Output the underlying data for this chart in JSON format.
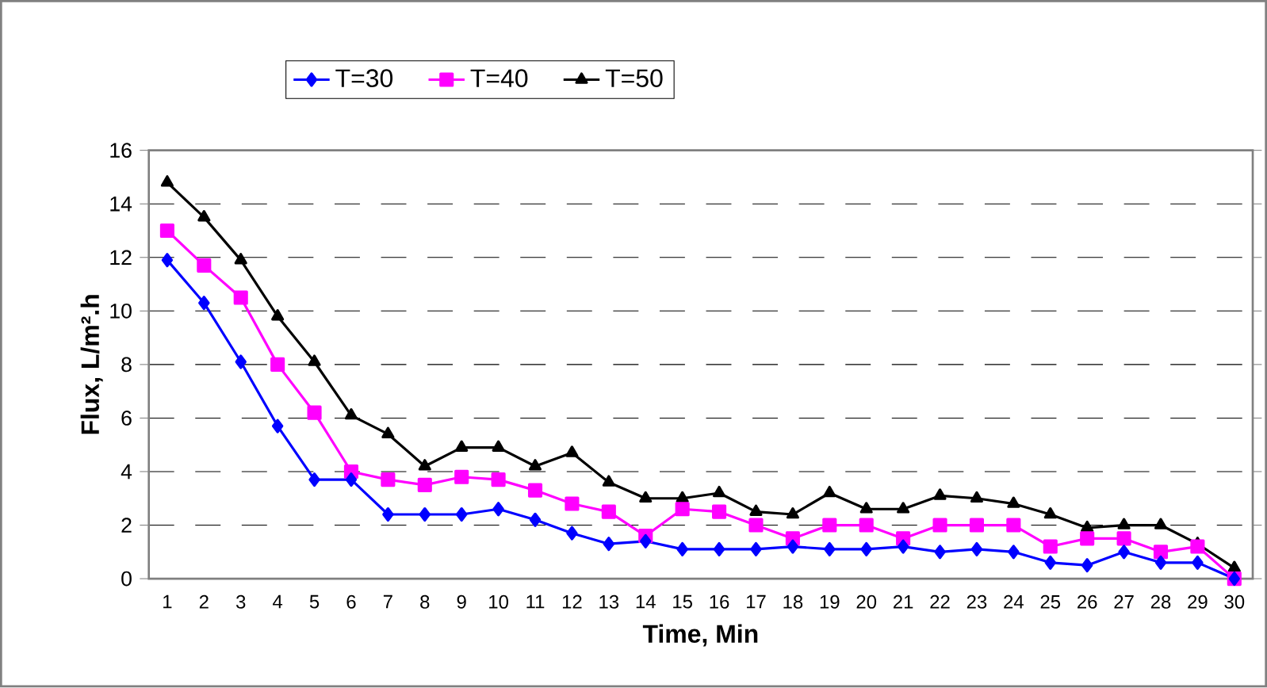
{
  "chart_data": {
    "type": "line",
    "xlabel": "Time, Min",
    "ylabel": "Flux, L/m².h",
    "categories": [
      "1",
      "2",
      "3",
      "4",
      "5",
      "6",
      "7",
      "8",
      "9",
      "10",
      "11",
      "12",
      "13",
      "14",
      "15",
      "16",
      "17",
      "18",
      "19",
      "20",
      "21",
      "22",
      "23",
      "24",
      "25",
      "26",
      "27",
      "28",
      "29",
      "30"
    ],
    "series": [
      {
        "name": "T=30",
        "color": "#0000ff",
        "marker": "diamond",
        "values": [
          11.9,
          10.3,
          8.1,
          5.7,
          3.7,
          3.7,
          2.4,
          2.4,
          2.4,
          2.6,
          2.2,
          1.7,
          1.3,
          1.4,
          1.1,
          1.1,
          1.1,
          1.2,
          1.1,
          1.1,
          1.2,
          1.0,
          1.1,
          1.0,
          0.6,
          0.5,
          1.0,
          0.6,
          0.6,
          0
        ]
      },
      {
        "name": "T=40",
        "color": "#ff00ff",
        "marker": "square",
        "values": [
          13.0,
          11.7,
          10.5,
          8.0,
          6.2,
          4.0,
          3.7,
          3.5,
          3.8,
          3.7,
          3.3,
          2.8,
          2.5,
          1.6,
          2.6,
          2.5,
          2.0,
          1.5,
          2.0,
          2.0,
          1.5,
          2.0,
          2.0,
          2.0,
          1.2,
          1.5,
          1.5,
          1.0,
          1.2,
          0
        ]
      },
      {
        "name": "T=50",
        "color": "#000000",
        "marker": "triangle",
        "values": [
          14.8,
          13.5,
          11.9,
          9.8,
          8.1,
          6.1,
          5.4,
          4.2,
          4.9,
          4.9,
          4.2,
          4.7,
          3.6,
          3.0,
          3.0,
          3.2,
          2.5,
          2.4,
          3.2,
          2.6,
          2.6,
          3.1,
          3.0,
          2.8,
          2.4,
          1.9,
          2.0,
          2.0,
          1.3,
          0.4
        ]
      }
    ],
    "ylim": [
      0,
      16
    ],
    "yticks": [
      0,
      2,
      4,
      6,
      8,
      10,
      12,
      14,
      16
    ],
    "grid": "y",
    "legend": "top",
    "line_style": "solid"
  }
}
